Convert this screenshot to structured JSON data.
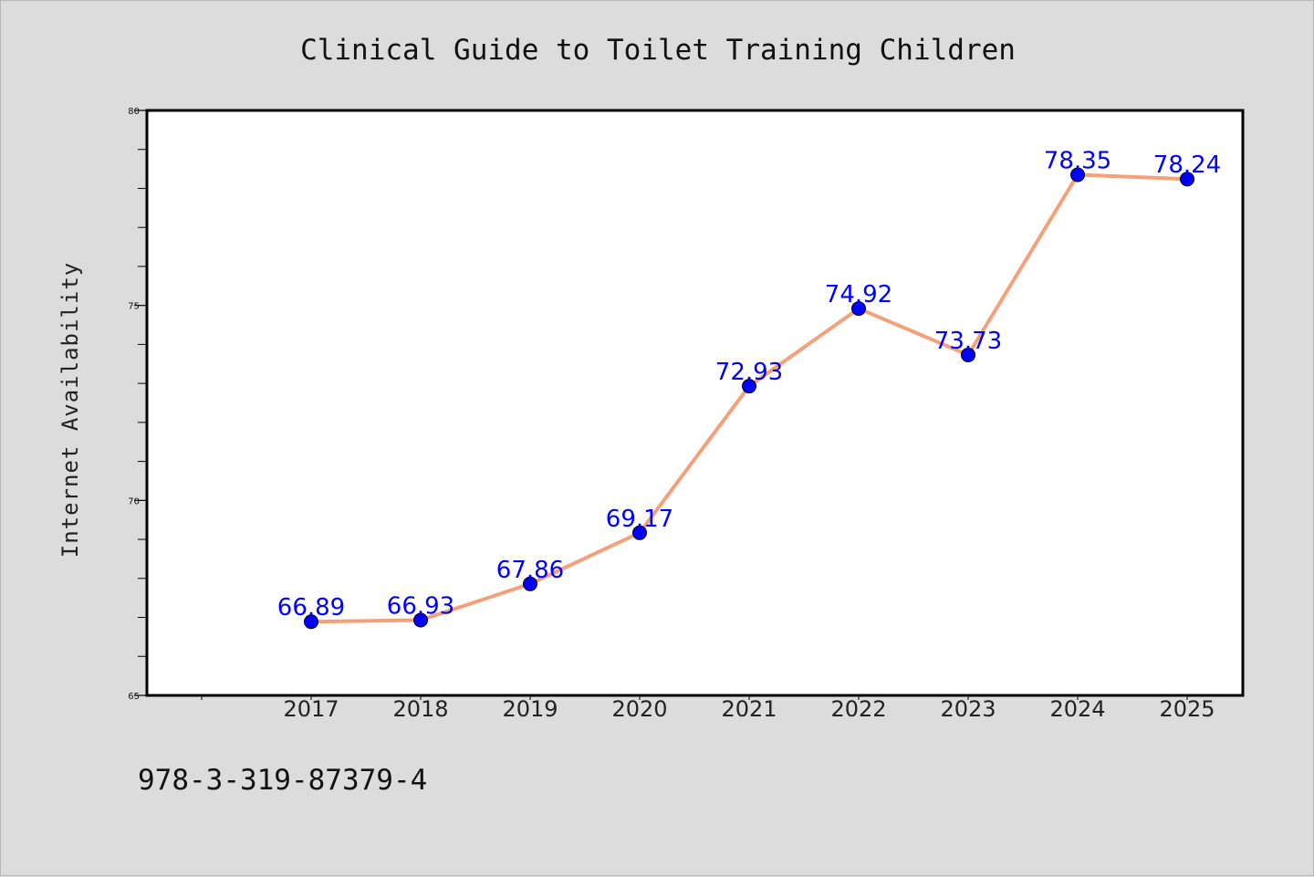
{
  "chart_data": {
    "type": "line",
    "title": "Clinical Guide to Toilet Training Children",
    "ylabel": "Internet Availability",
    "xlabel": "",
    "categories": [
      "2017",
      "2018",
      "2019",
      "2020",
      "2021",
      "2022",
      "2023",
      "2024",
      "2025"
    ],
    "values": [
      66.89,
      66.93,
      67.86,
      69.17,
      72.93,
      74.92,
      73.73,
      78.35,
      78.24
    ],
    "data_labels": [
      "66.89",
      "66.93",
      "67.86",
      "69.17",
      "72.93",
      "74.92",
      "73.73",
      "78.35",
      "78.24"
    ],
    "ylim": [
      65,
      80
    ],
    "yticks": [
      "65",
      "70",
      "75",
      "80"
    ],
    "ytick_values": [
      65,
      70,
      75,
      80
    ],
    "grid": false,
    "line_color": "#f4a07a",
    "marker_color": "#0000ff",
    "label_color": "#0000ff",
    "plot_background": "#ffffff",
    "figure_background": "#dcdcdc"
  },
  "footer": {
    "isbn": "978-3-319-87379-4"
  }
}
